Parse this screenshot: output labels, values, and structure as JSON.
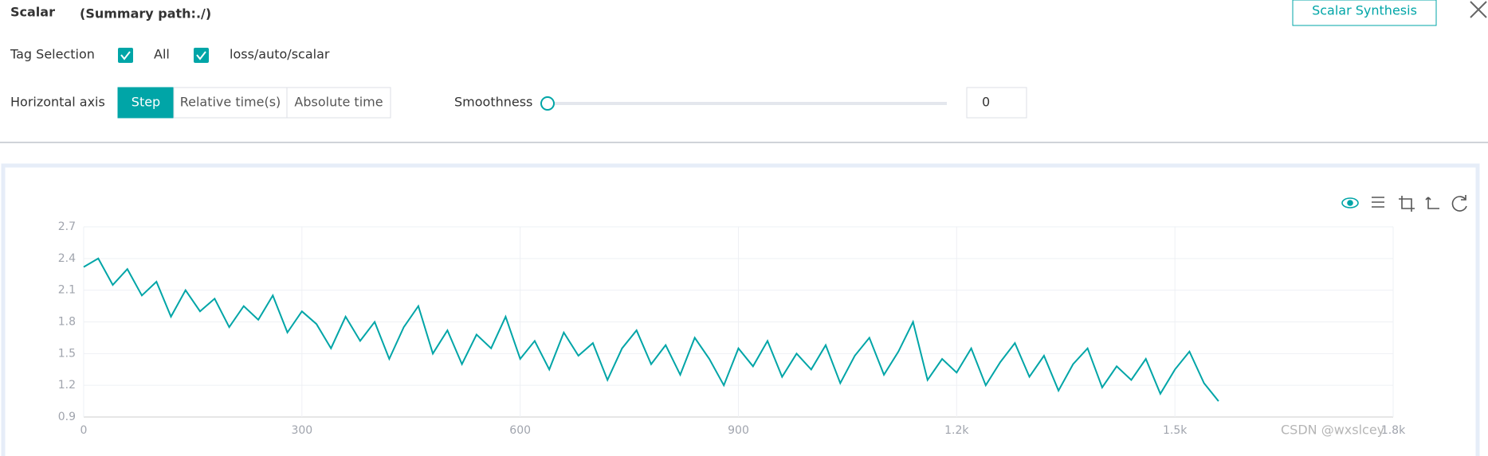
{
  "header": {
    "title": "Scalar",
    "subtitle": "(Summary path:./)",
    "button": "Scalar Synthesis"
  },
  "tag_selection": {
    "label": "Tag Selection",
    "options": [
      "All",
      "loss/auto/scalar"
    ]
  },
  "horizontal_axis": {
    "label": "Horizontal axis",
    "options": [
      "Step",
      "Relative time(s)",
      "Absolute time"
    ],
    "selected": 0
  },
  "smoothness": {
    "label": "Smoothness",
    "value": 0
  },
  "watermark": "CSDN @wxslcey",
  "chart_data": {
    "type": "line",
    "x": [
      0,
      20,
      40,
      60,
      80,
      100,
      120,
      140,
      160,
      180,
      200,
      220,
      240,
      260,
      280,
      300,
      320,
      340,
      360,
      380,
      400,
      420,
      440,
      460,
      480,
      500,
      520,
      540,
      560,
      580,
      600,
      620,
      640,
      660,
      680,
      700,
      720,
      740,
      760,
      780,
      800,
      820,
      840,
      860,
      880,
      900,
      920,
      940,
      960,
      980,
      1000,
      1020,
      1040,
      1060,
      1080,
      1100,
      1120,
      1140,
      1160,
      1180,
      1200,
      1220,
      1240,
      1260,
      1280,
      1300,
      1320,
      1340,
      1360,
      1380,
      1400,
      1420,
      1440,
      1460,
      1480,
      1500,
      1520,
      1540,
      1560
    ],
    "series": [
      {
        "color": "#00a5a7",
        "values": [
          2.32,
          2.4,
          2.15,
          2.3,
          2.05,
          2.18,
          1.85,
          2.1,
          1.9,
          2.02,
          1.75,
          1.95,
          1.82,
          2.05,
          1.7,
          1.9,
          1.78,
          1.55,
          1.85,
          1.62,
          1.8,
          1.45,
          1.75,
          1.95,
          1.5,
          1.72,
          1.4,
          1.68,
          1.55,
          1.85,
          1.45,
          1.62,
          1.35,
          1.7,
          1.48,
          1.6,
          1.25,
          1.55,
          1.72,
          1.4,
          1.58,
          1.3,
          1.65,
          1.45,
          1.2,
          1.55,
          1.38,
          1.62,
          1.28,
          1.5,
          1.35,
          1.58,
          1.22,
          1.48,
          1.65,
          1.3,
          1.52,
          1.8,
          1.25,
          1.45,
          1.32,
          1.55,
          1.2,
          1.42,
          1.6,
          1.28,
          1.48,
          1.15,
          1.4,
          1.55,
          1.18,
          1.38,
          1.25,
          1.45,
          1.12,
          1.35,
          1.52,
          1.22,
          1.05
        ]
      }
    ],
    "xlim": [
      0,
      1800
    ],
    "xticks": [
      0,
      300,
      600,
      900,
      {
        "value": 1200,
        "label": "1.2k"
      },
      {
        "value": 1500,
        "label": "1.5k"
      },
      {
        "value": 1800,
        "label": "1.8k"
      }
    ],
    "ylim": [
      0.9,
      2.7
    ],
    "yticks": [
      0.9,
      1.2,
      1.5,
      1.8,
      2.1,
      2.4,
      2.7
    ],
    "grid": true
  }
}
